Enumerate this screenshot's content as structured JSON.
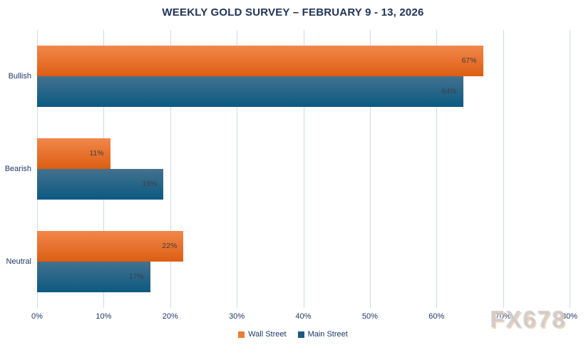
{
  "chart_data": {
    "type": "bar",
    "orientation": "horizontal",
    "title": "WEEKLY GOLD SURVEY – FEBRUARY 9 - 13, 2026",
    "categories": [
      "Bullish",
      "Bearish",
      "Neutral"
    ],
    "series": [
      {
        "name": "Wall Street",
        "color": "#ed7d31",
        "gradient": [
          "#f1874a",
          "#dd5e13"
        ],
        "values": [
          67,
          11,
          22
        ]
      },
      {
        "name": "Main Street",
        "color": "#1b5a7e",
        "gradient": [
          "#44718e",
          "#0b5a82"
        ],
        "values": [
          64,
          19,
          17
        ]
      }
    ],
    "x_ticks": [
      "0%",
      "10%",
      "20%",
      "30%",
      "40%",
      "50%",
      "60%",
      "70%",
      "80%"
    ],
    "xlim": [
      0,
      80
    ],
    "value_suffix": "%",
    "grid": "vertical",
    "gridline_color": "#ccdcee",
    "label_color": "#1f3864",
    "legend_position": "bottom"
  },
  "watermark": "FX678"
}
